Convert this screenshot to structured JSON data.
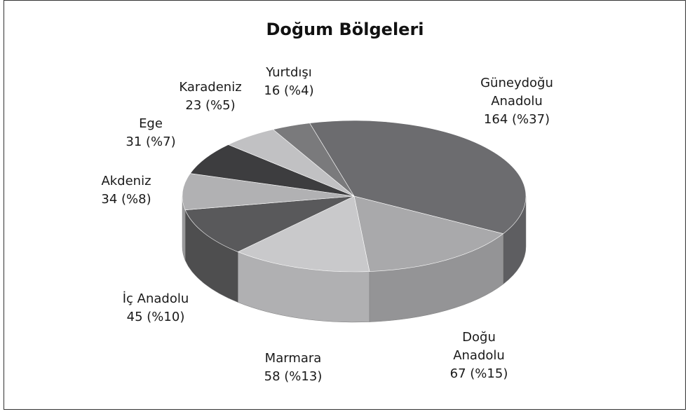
{
  "chart_data": {
    "type": "pie",
    "title": "Doğum Bölgeleri",
    "categories": [
      "Güneydoğu Anadolu",
      "Doğu Anadolu",
      "Marmara",
      "İç Anadolu",
      "Akdeniz",
      "Ege",
      "Karadeniz",
      "Yurtdışı"
    ],
    "values": [
      164,
      67,
      58,
      45,
      34,
      31,
      23,
      16
    ],
    "value_labels": [
      "164 (%37)",
      "67 (%15)",
      "58 (%13)",
      "45 (%10)",
      "34 (%8)",
      "31 (%7)",
      "23 (%5)",
      "16 (%4)"
    ],
    "colors": [
      "#6c6c6f",
      "#a9a9ab",
      "#c9c9cb",
      "#59595b",
      "#b1b1b3",
      "#3d3d3f",
      "#c1c1c3",
      "#7a7a7c"
    ]
  }
}
